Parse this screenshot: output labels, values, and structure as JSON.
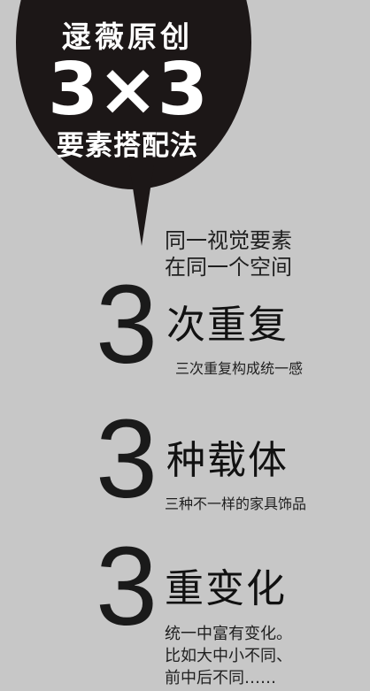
{
  "bubble": {
    "title": "逯薇原创",
    "big": "3×3",
    "subtitle": "要素搭配法"
  },
  "intro": {
    "line1": "同一视觉要素",
    "line2": "在同一个空间"
  },
  "sections": [
    {
      "number": "3",
      "heading": "次重复",
      "lines": [
        "三次重复构成统一感"
      ]
    },
    {
      "number": "3",
      "heading": "种载体",
      "lines": [
        "三种不一样的家具饰品"
      ]
    },
    {
      "number": "3",
      "heading": "重变化",
      "lines": [
        "统一中富有变化。",
        "比如大中小不同、",
        "前中后不同……"
      ]
    }
  ],
  "colors": {
    "background": "#c7c7c7",
    "bubble": "#1c1717",
    "text": "#1b1b1b",
    "bubble_text": "#ffffff"
  }
}
